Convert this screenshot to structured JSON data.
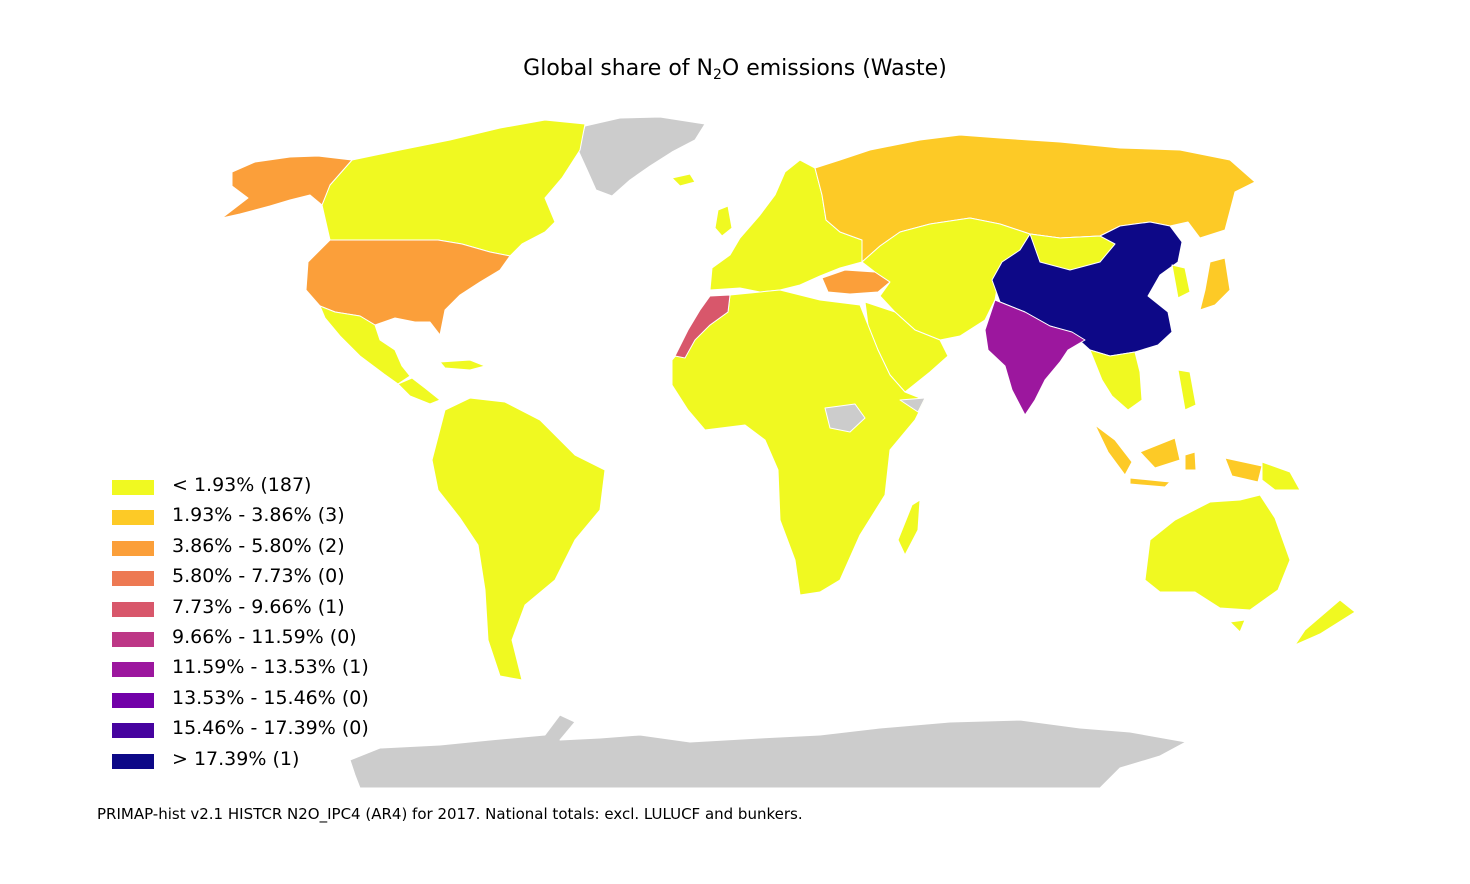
{
  "title": {
    "prefix": "Global share of N",
    "subscript": "2",
    "suffix": "O emissions (Waste)"
  },
  "colors": {
    "no_data": "#cccccc",
    "bin_0": "#f0f921",
    "bin_1": "#fdca26",
    "bin_2": "#fb9f3a",
    "bin_3": "#ed7953",
    "bin_4": "#d8576b",
    "bin_5": "#bd3786",
    "bin_6": "#9c179e",
    "bin_7": "#7201a8",
    "bin_8": "#46039f",
    "bin_9": "#0d0887",
    "border": "#ffffff"
  },
  "legend": {
    "items": [
      {
        "label": "< 1.93% (187)",
        "color": "#f0f921"
      },
      {
        "label": "1.93% - 3.86% (3)",
        "color": "#fdca26"
      },
      {
        "label": "3.86% - 5.80% (2)",
        "color": "#fb9f3a"
      },
      {
        "label": "5.80% - 7.73% (0)",
        "color": "#ed7953"
      },
      {
        "label": "7.73% - 9.66% (1)",
        "color": "#d8576b"
      },
      {
        "label": "9.66% - 11.59% (0)",
        "color": "#bd3786"
      },
      {
        "label": "11.59% - 13.53% (1)",
        "color": "#9c179e"
      },
      {
        "label": "13.53% - 15.46% (0)",
        "color": "#7201a8"
      },
      {
        "label": "15.46% - 17.39% (0)",
        "color": "#46039f"
      },
      {
        "label": "> 17.39% (1)",
        "color": "#0d0887"
      }
    ]
  },
  "footnote": "PRIMAP-hist v2.1 HISTCR N2O_IPC4 (AR4) for 2017. National totals: excl. LULUCF and bunkers."
}
